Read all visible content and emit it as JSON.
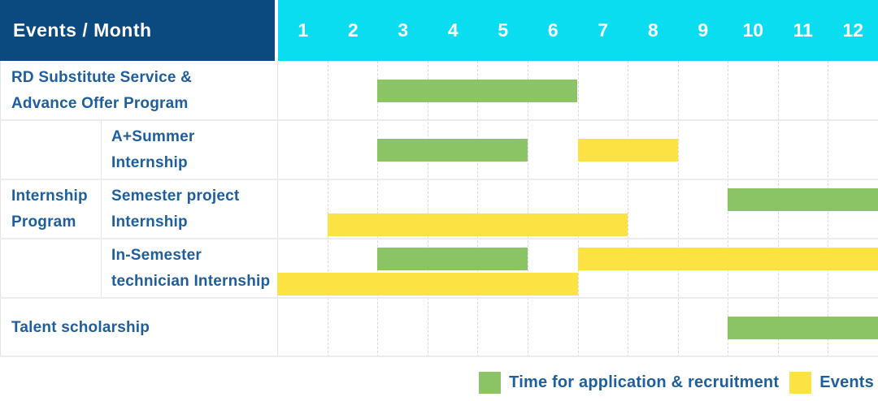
{
  "header": {
    "title": "Events / Month",
    "months": [
      "1",
      "2",
      "3",
      "4",
      "5",
      "6",
      "7",
      "8",
      "9",
      "10",
      "11",
      "12"
    ]
  },
  "colors": {
    "navy": "#0b4a7f",
    "cyan": "#0bddf0",
    "text": "#1e5e9c",
    "application": "#8ac464",
    "events": "#fde244"
  },
  "chart_data": {
    "type": "gantt",
    "unit": "month",
    "x_range": [
      1,
      12
    ],
    "corner_header": "Events / Month",
    "rows": [
      {
        "id": "rd-substitute",
        "label_lines": [
          "RD Substitute Service &",
          "Advance Offer Program"
        ],
        "indent": false,
        "bars": [
          {
            "start_month": 3,
            "end_month": 6,
            "kind": "application",
            "lane": "mid"
          }
        ]
      },
      {
        "id": "a-plus-summer-internship",
        "label_lines": [
          "A+Summer",
          "Internship"
        ],
        "indent": true,
        "bars": [
          {
            "start_month": 3,
            "end_month": 5,
            "kind": "application",
            "lane": "mid"
          },
          {
            "start_month": 7,
            "end_month": 8,
            "kind": "events",
            "lane": "mid"
          }
        ]
      },
      {
        "id": "semester-project-internship",
        "label_lines": [
          "Semester project",
          "Internship"
        ],
        "indent": true,
        "bars": [
          {
            "start_month": 10,
            "end_month": 12,
            "kind": "application",
            "lane": "top"
          },
          {
            "start_month": 2,
            "end_month": 7,
            "kind": "events",
            "lane": "bottom"
          }
        ]
      },
      {
        "id": "in-semester-technician-internship",
        "label_lines": [
          "In-Semester",
          "technician Internship"
        ],
        "indent": true,
        "bars": [
          {
            "start_month": 3,
            "end_month": 5,
            "kind": "application",
            "lane": "top"
          },
          {
            "start_month": 7,
            "end_month": 12,
            "kind": "events",
            "lane": "top"
          },
          {
            "start_month": 1,
            "end_month": 6,
            "kind": "events",
            "lane": "bottom"
          }
        ]
      },
      {
        "id": "talent-scholarship",
        "label_lines": [
          "Talent scholarship"
        ],
        "indent": false,
        "bars": [
          {
            "start_month": 10,
            "end_month": 12,
            "kind": "application",
            "lane": "mid"
          }
        ]
      }
    ],
    "group": {
      "label_lines": [
        "Internship",
        "Program"
      ],
      "row_ids": [
        "a-plus-summer-internship",
        "semester-project-internship",
        "in-semester-technician-internship"
      ]
    }
  },
  "legend": {
    "items": [
      {
        "kind": "application",
        "label": "Time for application & recruitment"
      },
      {
        "kind": "events",
        "label": "Events"
      }
    ]
  }
}
